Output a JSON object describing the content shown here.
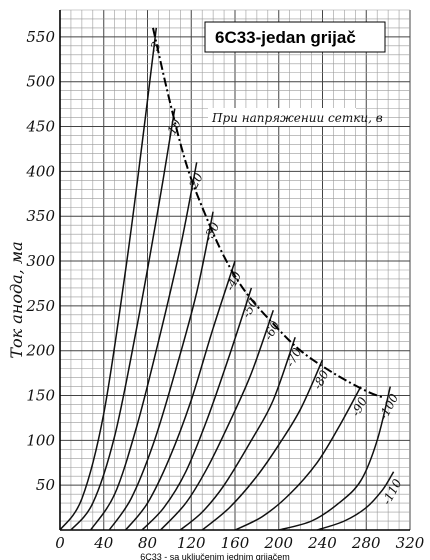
{
  "chart_data": {
    "type": "line",
    "title": "6C33-jedan grijač",
    "annotation": "При напряжении сетки, в",
    "ylabel": "Ток анода, ма",
    "xlabel": "",
    "footer": "6C33 - sa uključenim jednim grijačem",
    "xlim": [
      0,
      320
    ],
    "ylim": [
      0,
      580
    ],
    "grid": true,
    "x_ticks": [
      0,
      40,
      80,
      120,
      160,
      200,
      240,
      280,
      320
    ],
    "y_ticks": [
      50,
      100,
      150,
      200,
      250,
      300,
      350,
      400,
      450,
      500,
      550
    ],
    "series": [
      {
        "name": "-3",
        "x": [
          0,
          20,
          40,
          60,
          75,
          88
        ],
        "y": [
          0,
          35,
          130,
          290,
          430,
          560
        ]
      },
      {
        "name": "-10",
        "x": [
          10,
          30,
          50,
          70,
          90,
          105
        ],
        "y": [
          0,
          30,
          105,
          225,
          360,
          470
        ]
      },
      {
        "name": "-20",
        "x": [
          28,
          50,
          70,
          90,
          110,
          125
        ],
        "y": [
          0,
          40,
          115,
          210,
          315,
          410
        ]
      },
      {
        "name": "-30",
        "x": [
          45,
          65,
          85,
          105,
          125,
          140
        ],
        "y": [
          0,
          35,
          95,
          175,
          265,
          355
        ]
      },
      {
        "name": "-40",
        "x": [
          60,
          80,
          100,
          120,
          140,
          160
        ],
        "y": [
          0,
          30,
          80,
          145,
          225,
          300
        ]
      },
      {
        "name": "-50",
        "x": [
          75,
          95,
          115,
          135,
          155,
          175
        ],
        "y": [
          0,
          25,
          65,
          125,
          195,
          270
        ]
      },
      {
        "name": "-60",
        "x": [
          92,
          115,
          135,
          155,
          175,
          195
        ],
        "y": [
          0,
          30,
          70,
          120,
          175,
          245
        ]
      },
      {
        "name": "-70",
        "x": [
          110,
          130,
          150,
          175,
          195,
          215
        ],
        "y": [
          0,
          20,
          50,
          100,
          145,
          215
        ]
      },
      {
        "name": "-80",
        "x": [
          130,
          155,
          180,
          200,
          220,
          240
        ],
        "y": [
          0,
          25,
          60,
          95,
          135,
          190
        ]
      },
      {
        "name": "-90",
        "x": [
          160,
          185,
          210,
          235,
          255,
          275
        ],
        "y": [
          0,
          15,
          40,
          75,
          115,
          160
        ]
      },
      {
        "name": "-100",
        "x": [
          200,
          230,
          255,
          275,
          290,
          302
        ],
        "y": [
          0,
          10,
          30,
          55,
          100,
          160
        ]
      },
      {
        "name": "-110",
        "x": [
          235,
          260,
          280,
          295,
          305
        ],
        "y": [
          0,
          10,
          25,
          45,
          65
        ]
      }
    ],
    "dissipation_curve": {
      "x": [
        85,
        100,
        115,
        130,
        150,
        170,
        195,
        220,
        250,
        280,
        295
      ],
      "y": [
        560,
        480,
        410,
        360,
        305,
        265,
        230,
        200,
        175,
        155,
        148
      ]
    }
  }
}
